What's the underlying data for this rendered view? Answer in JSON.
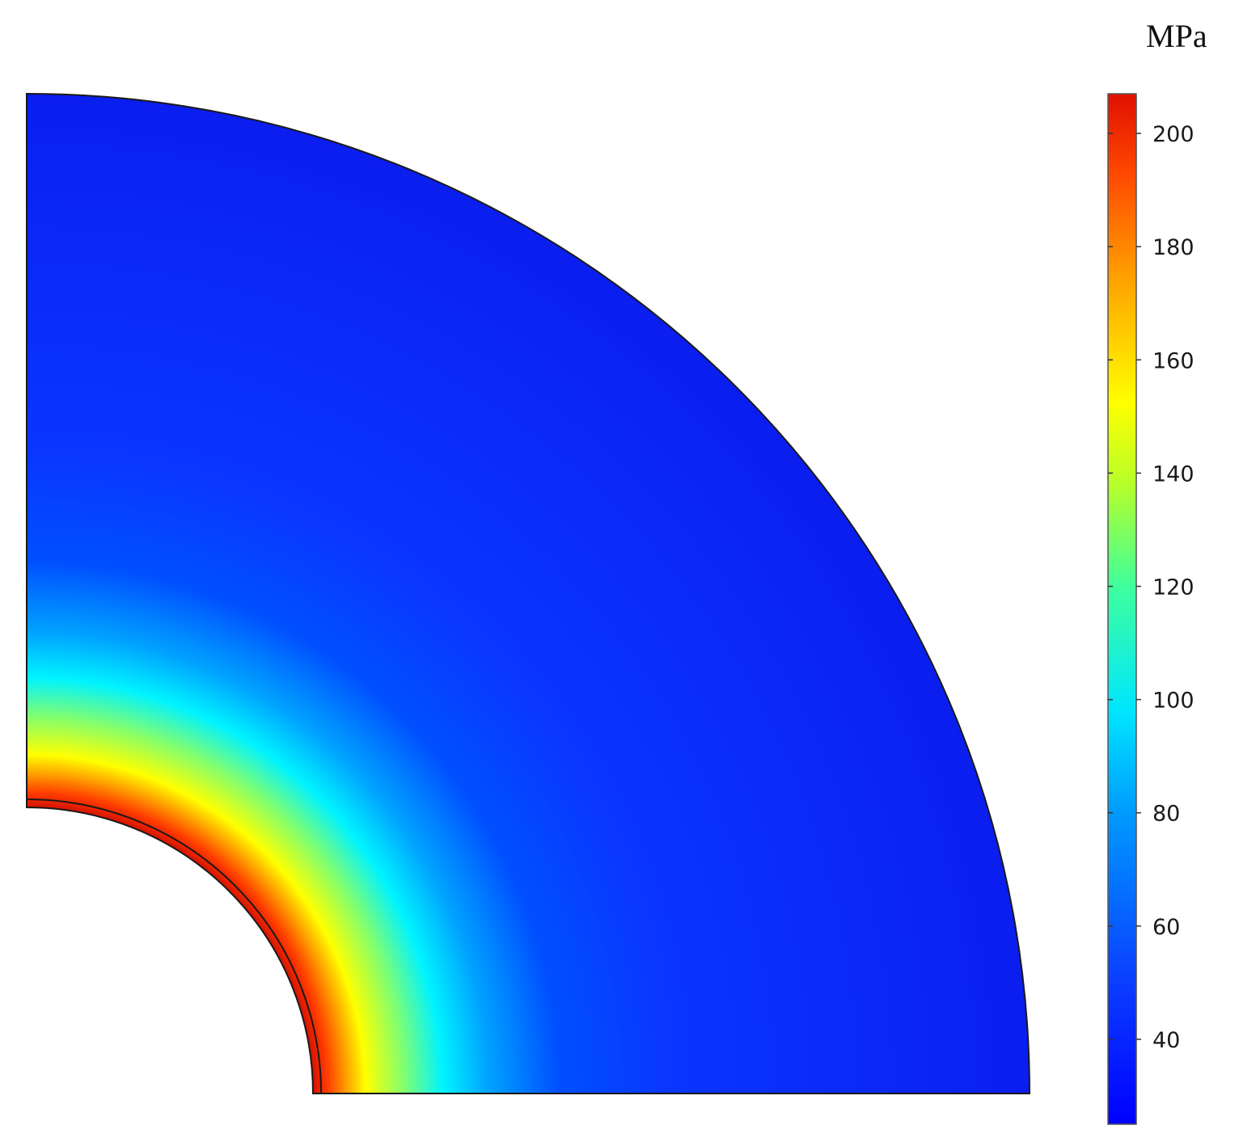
{
  "chart_data": {
    "type": "heatmap",
    "colorbar": {
      "unit": "MPa",
      "range": [
        25,
        207
      ],
      "ticks": [
        40,
        60,
        80,
        100,
        120,
        140,
        160,
        180,
        200
      ],
      "tick_labels": [
        "40",
        "60",
        "80",
        "100",
        "120",
        "140",
        "160",
        "180",
        "200"
      ],
      "colormap": "jet",
      "position": "right"
    },
    "field": {
      "geometry": "quarter annulus",
      "inner_layer": "thin outlined band at inner radius",
      "max_value_at": "inner radius",
      "min_value_at": "outer radius",
      "inner_value": 207,
      "outer_value": 25
    }
  }
}
